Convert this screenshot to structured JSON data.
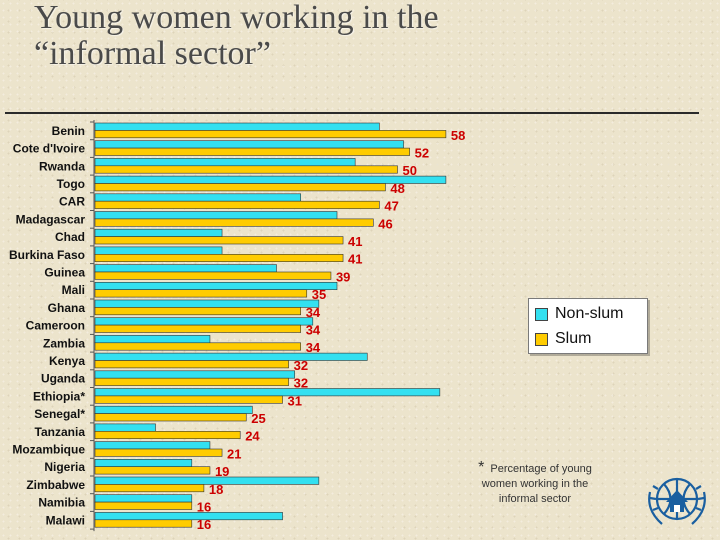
{
  "title_line1": "Young women working in the",
  "title_line2": "“informal sector”",
  "legend": {
    "nonslum": "Non-slum",
    "slum": "Slum"
  },
  "footnote": {
    "star": "*",
    "text": "Percentage of young women working in the informal sector"
  },
  "colors": {
    "nonslum": "#33e0f0",
    "slum": "#ffcc00",
    "label": "#cc0000",
    "outline": "#333333"
  },
  "chart_data": {
    "type": "bar",
    "orientation": "horizontal",
    "categories": [
      "Benin",
      "Cote d'Ivoire",
      "Rwanda",
      "Togo",
      "CAR",
      "Madagascar",
      "Chad",
      "Burkina Faso",
      "Guinea",
      "Mali",
      "Ghana",
      "Cameroon",
      "Zambia",
      "Kenya",
      "Uganda",
      "Ethiopia*",
      "Senegal*",
      "Tanzania",
      "Mozambique",
      "Nigeria",
      "Zimbabwe",
      "Namibia",
      "Malawi"
    ],
    "series": [
      {
        "name": "Non-slum",
        "values": [
          47,
          51,
          43,
          58,
          34,
          40,
          21,
          21,
          30,
          40,
          37,
          36,
          19,
          45,
          33,
          57,
          26,
          10,
          19,
          16,
          37,
          16,
          31
        ]
      },
      {
        "name": "Slum",
        "values": [
          58,
          52,
          50,
          48,
          47,
          46,
          41,
          41,
          39,
          35,
          34,
          34,
          34,
          32,
          32,
          31,
          25,
          24,
          21,
          19,
          18,
          16,
          16
        ]
      }
    ],
    "data_labels": [
      "58",
      "52",
      "50",
      "48",
      "47",
      "46",
      "41",
      "41",
      "39",
      "35",
      "34",
      "34",
      "34",
      "32",
      "32",
      "31",
      "25",
      "24",
      "21",
      "19",
      "18",
      "16",
      "16"
    ],
    "xlim": [
      0,
      70
    ],
    "grid": false,
    "legend_position": "right"
  }
}
